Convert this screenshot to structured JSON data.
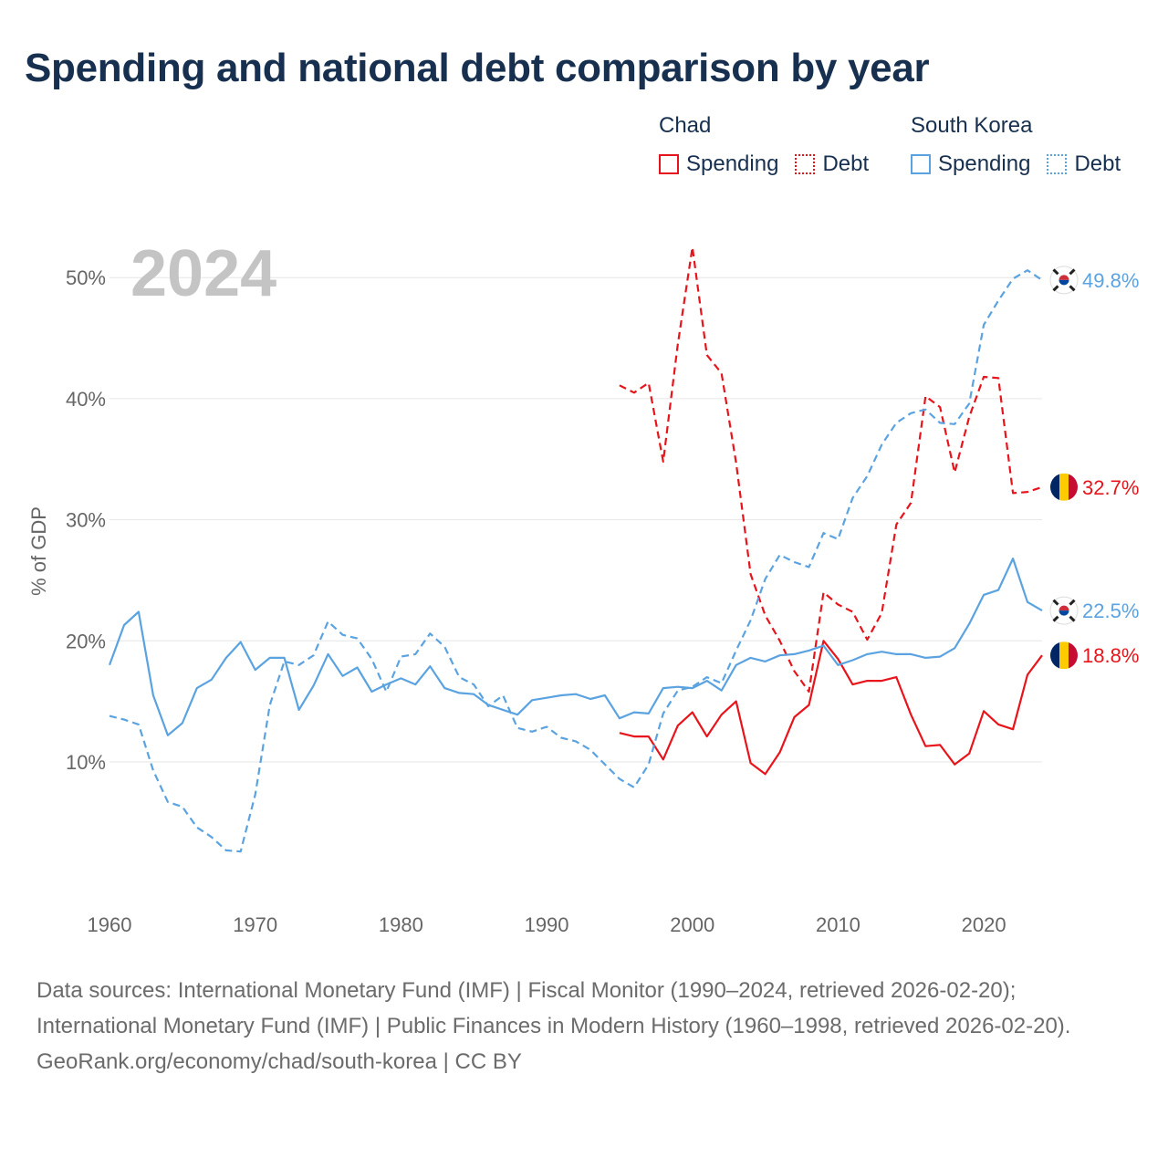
{
  "title": "Spending and national debt comparison by year",
  "legend": {
    "chad": {
      "name": "Chad",
      "spending": "Spending",
      "debt": "Debt",
      "color": "#e8141b"
    },
    "korea": {
      "name": "South Korea",
      "spending": "Spending",
      "debt": "Debt",
      "color": "#5ba3e0"
    }
  },
  "footer": {
    "sources": "Data sources: International Monetary Fund (IMF) | Fiscal Monitor (1990–2024, retrieved 2026-02-20); International Monetary Fund (IMF) | Public Finances in Modern History (1960–1998, retrieved 2026-02-20).",
    "credit": "GeoRank.org/economy/chad/south-korea | CC BY"
  },
  "chart_data": {
    "type": "line",
    "year_label": "2024",
    "ylabel": "% of GDP",
    "xlim": [
      1960,
      2024
    ],
    "ylim": [
      0,
      55
    ],
    "y_ticks": [
      10,
      20,
      30,
      40,
      50
    ],
    "y_tick_labels": [
      "10%",
      "20%",
      "30%",
      "40%",
      "50%"
    ],
    "x_ticks": [
      1960,
      1970,
      1980,
      1990,
      2000,
      2010,
      2020
    ],
    "x_tick_labels": [
      "1960",
      "1970",
      "1980",
      "1990",
      "2000",
      "2010",
      "2020"
    ],
    "series": [
      {
        "name": "Chad Debt",
        "country": "Chad",
        "metric": "Debt",
        "color": "#e8141b",
        "dash": true,
        "start": 1995,
        "values": [
          41.1,
          40.5,
          41.3,
          34.8,
          44.5,
          52.5,
          43.6,
          42.1,
          34.7,
          25.5,
          22.1,
          20.0,
          17.5,
          15.8,
          24.0,
          23.0,
          22.4,
          20.1,
          22.3,
          29.6,
          31.4,
          40.2,
          39.3,
          33.9,
          38.5,
          41.8,
          41.7,
          32.2,
          32.3,
          32.7
        ],
        "end_label": "32.7%",
        "flag": "chad"
      },
      {
        "name": "Chad Spending",
        "country": "Chad",
        "metric": "Spending",
        "color": "#e8141b",
        "dash": false,
        "start": 1995,
        "values": [
          12.4,
          12.1,
          12.1,
          10.2,
          13.0,
          14.1,
          12.1,
          13.9,
          15.0,
          9.9,
          9.0,
          10.8,
          13.7,
          14.7,
          20.0,
          18.5,
          16.4,
          16.7,
          16.7,
          17.0,
          13.9,
          11.3,
          11.4,
          9.8,
          10.7,
          14.2,
          13.1,
          12.7,
          17.2,
          18.8
        ],
        "end_label": "18.8%",
        "flag": "chad"
      },
      {
        "name": "South Korea Debt",
        "country": "South Korea",
        "metric": "Debt",
        "color": "#5ba3e0",
        "dash": true,
        "start": 1960,
        "values": [
          13.8,
          13.5,
          13.1,
          9.3,
          6.7,
          6.3,
          4.6,
          3.8,
          2.7,
          2.6,
          7.3,
          14.7,
          18.3,
          18.0,
          18.8,
          21.6,
          20.5,
          20.2,
          18.5,
          15.8,
          18.7,
          18.9,
          20.6,
          19.5,
          17.0,
          16.4,
          14.6,
          15.5,
          12.8,
          12.5,
          12.9,
          12.0,
          11.7,
          11.0,
          9.8,
          8.6,
          7.9,
          9.8,
          14.0,
          15.9,
          16.2,
          17.0,
          16.5,
          19.2,
          21.7,
          25.1,
          27.1,
          26.5,
          26.1,
          28.9,
          28.4,
          31.8,
          33.6,
          36.2,
          38.0,
          38.8,
          39.1,
          38.0,
          37.9,
          39.6,
          46.1,
          48.1,
          49.9,
          50.6,
          49.8
        ],
        "end_label": "49.8%",
        "flag": "korea"
      },
      {
        "name": "South Korea Spending",
        "country": "South Korea",
        "metric": "Spending",
        "color": "#5ba3e0",
        "dash": false,
        "start": 1960,
        "values": [
          18.0,
          21.3,
          22.4,
          15.5,
          12.2,
          13.2,
          16.1,
          16.8,
          18.6,
          19.9,
          17.6,
          18.6,
          18.6,
          14.3,
          16.3,
          18.9,
          17.1,
          17.8,
          15.8,
          16.4,
          16.9,
          16.4,
          17.9,
          16.1,
          15.7,
          15.6,
          14.7,
          14.3,
          13.9,
          15.1,
          15.3,
          15.5,
          15.6,
          15.2,
          15.5,
          13.6,
          14.1,
          14.0,
          16.1,
          16.2,
          16.1,
          16.7,
          15.9,
          18.0,
          18.6,
          18.3,
          18.8,
          18.9,
          19.2,
          19.6,
          18.0,
          18.4,
          18.9,
          19.1,
          18.9,
          18.9,
          18.6,
          18.7,
          19.4,
          21.4,
          23.8,
          24.2,
          26.8,
          23.2,
          22.5
        ],
        "end_label": "22.5%",
        "flag": "korea"
      }
    ]
  }
}
